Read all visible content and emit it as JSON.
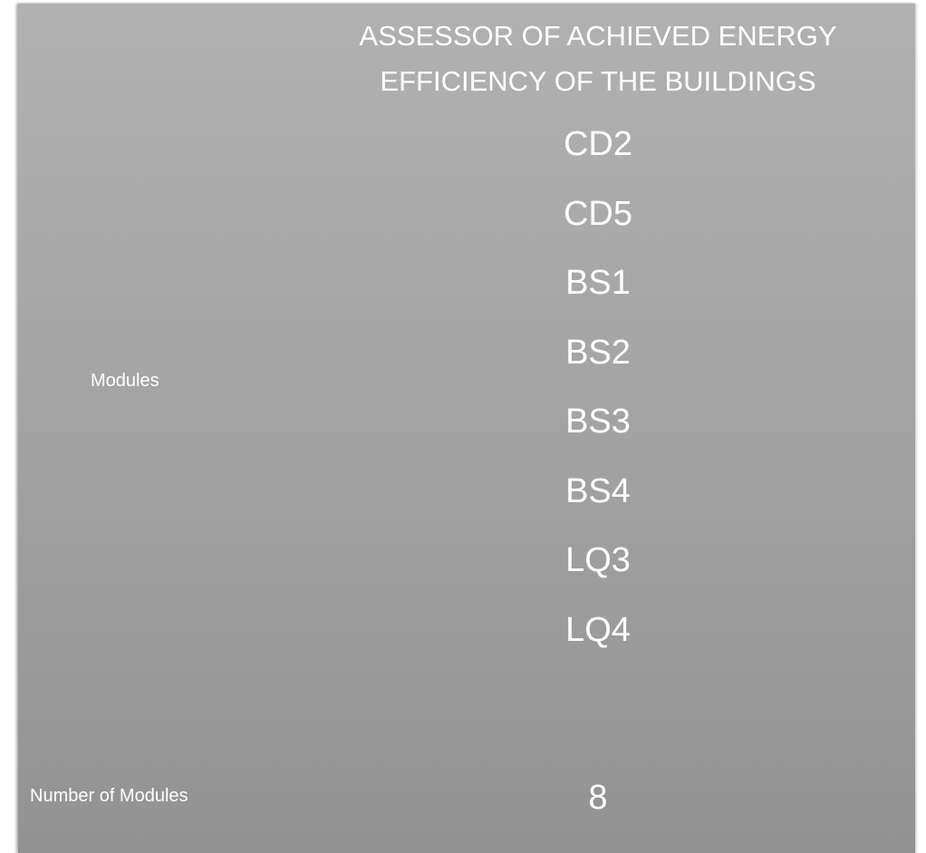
{
  "header": {
    "title_lines": [
      "ASSESSOR OF ACHIEVED ENERGY",
      "EFFICIENCY OF THE BUILDINGS"
    ]
  },
  "table": {
    "rows": [
      {
        "label": "Modules",
        "values": [
          "CD2",
          "CD5",
          "BS1",
          "BS2",
          "BS3",
          "BS4",
          "LQ3",
          "LQ4"
        ]
      },
      {
        "label": "Number of Modules",
        "value": 8
      }
    ]
  }
}
